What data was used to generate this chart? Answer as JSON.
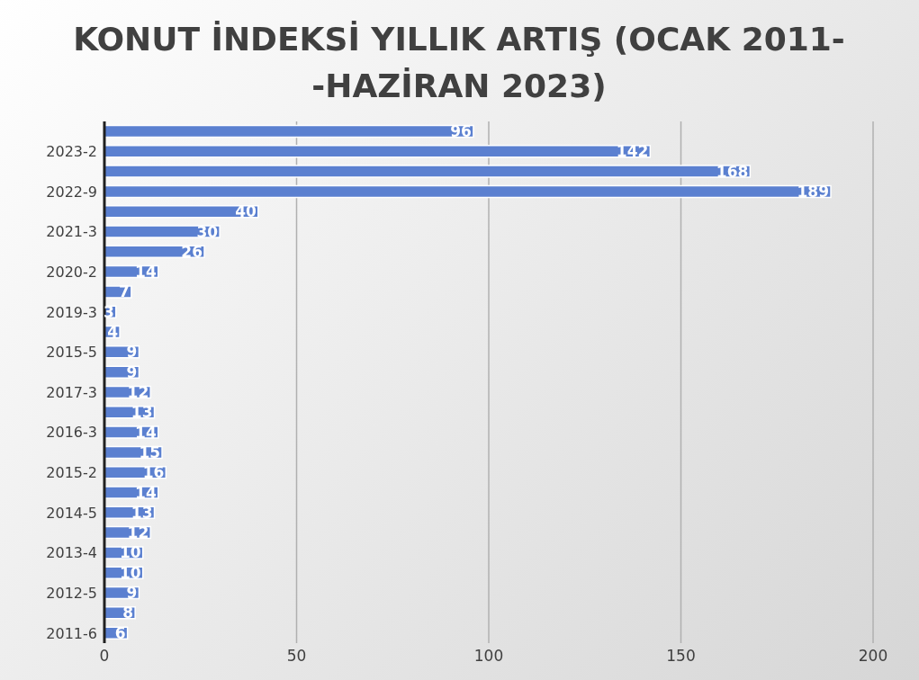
{
  "chart_data": {
    "type": "bar",
    "orientation": "horizontal",
    "title": "KONUT İNDEKSİ YILLIK ARTIŞ (OCAK 2011--HAZİRAN 2023)",
    "categories": [
      null,
      "2023-2",
      null,
      "2022-9",
      null,
      "2021-3",
      null,
      "2020-2",
      null,
      "2019-3",
      null,
      "2015-5",
      null,
      "2017-3",
      null,
      "2016-3",
      null,
      "2015-2",
      null,
      "2014-5",
      null,
      "2013-4",
      null,
      "2012-5",
      null,
      "2011-6"
    ],
    "values": [
      96,
      142,
      168,
      189,
      40,
      30,
      26,
      14,
      7,
      3,
      4,
      9,
      9,
      12,
      13,
      14,
      15,
      16,
      14,
      13,
      12,
      10,
      10,
      9,
      8,
      6
    ],
    "color": "#5b80d0",
    "xlim": [
      0,
      200
    ],
    "xticks": [
      0,
      50,
      100,
      150,
      200
    ],
    "grid": "x",
    "data_labels": true
  }
}
